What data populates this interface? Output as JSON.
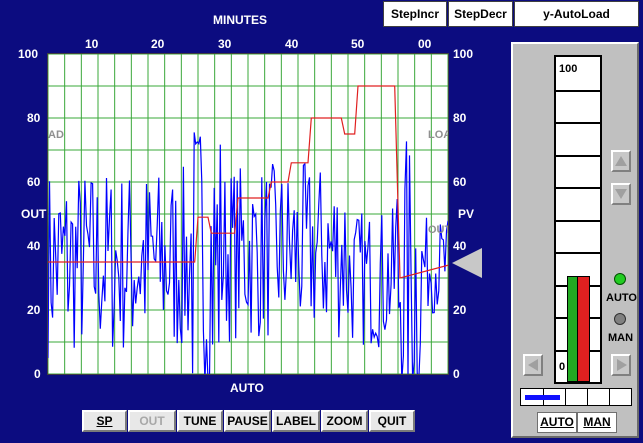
{
  "chart": {
    "top_axis_title": "MINUTES",
    "top_ticks": [
      "10",
      "20",
      "30",
      "40",
      "50",
      "00"
    ],
    "left_ticks": [
      "100",
      "80",
      "60",
      "40",
      "20",
      "0"
    ],
    "right_ticks": [
      "100",
      "80",
      "60",
      "40",
      "20",
      "0"
    ],
    "left_label": "OUT",
    "right_label": "PV",
    "ghost_left": "AD",
    "ghost_right": "LOA",
    "ghost_right2": "OUT",
    "bottom_label": "AUTO"
  },
  "toolbar": {
    "step_incr": "StepIncr",
    "step_decr": "StepDecr",
    "y_autoload": "y-AutoLoad"
  },
  "buttons": {
    "sp": "SP",
    "out": "OUT",
    "tune": "TUNE",
    "pause": "PAUSE",
    "label": "LABEL",
    "zoom": "ZOOM",
    "quit": "QUIT"
  },
  "faceplate": {
    "bar_top": "100",
    "bar_bottom": "0",
    "auto_indicator": "AUTO",
    "man_indicator": "MAN",
    "auto_button": "AUTO",
    "man_button": "MAN",
    "pv_level": 0.32,
    "sp_level": 0.32,
    "output_fraction": 0.32
  },
  "colors": {
    "background": "#0c0c80",
    "grid": "#3aa83a",
    "pv_trace": "#0000ff",
    "sp_trace": "#e02020",
    "auto_led": "#22cc22",
    "man_led": "#808080"
  },
  "chart_data": {
    "type": "line",
    "xlabel": "MINUTES",
    "x_ticks": [
      "10",
      "20",
      "30",
      "40",
      "50",
      "00"
    ],
    "ylim": [
      0,
      100
    ],
    "series": [
      {
        "name": "SP",
        "x": [
          0,
          22,
          22.5,
          24,
          24.5,
          28,
          28.5,
          33,
          33.5,
          36,
          36.5,
          39,
          39.5,
          44,
          44.5,
          46,
          46.5,
          52,
          52.8,
          60
        ],
        "y": [
          35,
          35,
          49,
          49,
          44,
          44,
          55,
          55,
          60,
          60,
          66,
          66,
          80,
          80,
          75,
          75,
          90,
          90,
          30,
          34
        ]
      }
    ]
  }
}
